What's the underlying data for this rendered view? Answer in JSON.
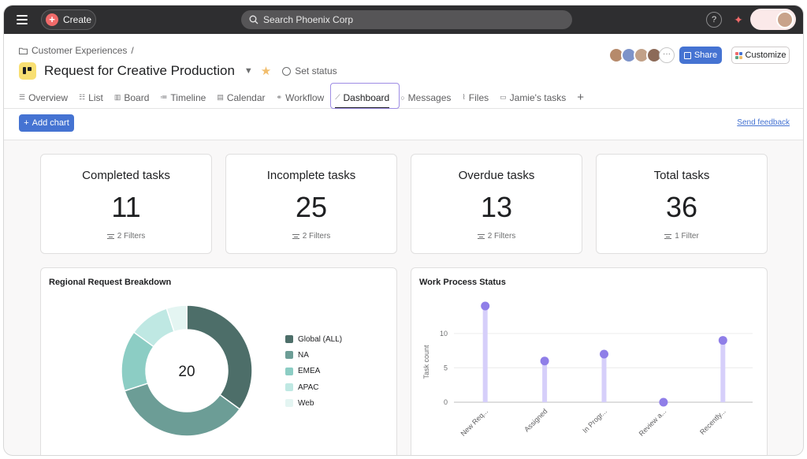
{
  "topbar": {
    "create_label": "Create",
    "search_placeholder": "Search Phoenix Corp",
    "help_label": "?"
  },
  "header": {
    "breadcrumb": "Customer Experiences",
    "breadcrumb_sep": "/",
    "project_title": "Request for Creative Production",
    "set_status": "Set status",
    "share_label": "Share",
    "customize_label": "Customize",
    "avatar_colors": [
      "#b68a6b",
      "#7d93c9",
      "#c2a188",
      "#8c6a58"
    ]
  },
  "tabs": [
    {
      "label": "Overview",
      "icon": "overview-icon"
    },
    {
      "label": "List",
      "icon": "list-icon"
    },
    {
      "label": "Board",
      "icon": "board-icon"
    },
    {
      "label": "Timeline",
      "icon": "timeline-icon"
    },
    {
      "label": "Calendar",
      "icon": "calendar-icon"
    },
    {
      "label": "Workflow",
      "icon": "workflow-icon"
    },
    {
      "label": "Dashboard",
      "icon": "dashboard-icon",
      "active": true
    },
    {
      "label": "Messages",
      "icon": "messages-icon"
    },
    {
      "label": "Files",
      "icon": "files-icon"
    },
    {
      "label": "Jamie's tasks",
      "icon": "tasks-icon"
    }
  ],
  "toolbar": {
    "add_chart_label": "Add chart",
    "send_feedback": "Send feedback"
  },
  "stats": [
    {
      "title": "Completed tasks",
      "value": "11",
      "filter": "2 Filters"
    },
    {
      "title": "Incomplete tasks",
      "value": "25",
      "filter": "2 Filters"
    },
    {
      "title": "Overdue tasks",
      "value": "13",
      "filter": "2 Filters"
    },
    {
      "title": "Total tasks",
      "value": "36",
      "filter": "1 Filter"
    }
  ],
  "chart_data": [
    {
      "type": "pie",
      "title": "Regional Request Breakdown",
      "center_label": "20",
      "categories": [
        "Global (ALL)",
        "NA",
        "EMEA",
        "APAC",
        "Web"
      ],
      "values": [
        7,
        7,
        3,
        2,
        1
      ],
      "colors": [
        "#4d6e69",
        "#6c9d96",
        "#8ccdc4",
        "#bfe8e3",
        "#e4f5f2"
      ],
      "legend_position": "right"
    },
    {
      "type": "scatter",
      "title": "Work Process Status",
      "categories": [
        "New Req...",
        "Assigned",
        "In Progr...",
        "Review a...",
        "Recently..."
      ],
      "values": [
        14,
        6,
        7,
        0,
        9
      ],
      "ylabel": "Task count",
      "yticks": [
        0,
        5,
        10
      ],
      "ylim": [
        0,
        14
      ],
      "grid": true,
      "color": "#8f7ee8",
      "stem_color": "#d6cffa"
    }
  ]
}
